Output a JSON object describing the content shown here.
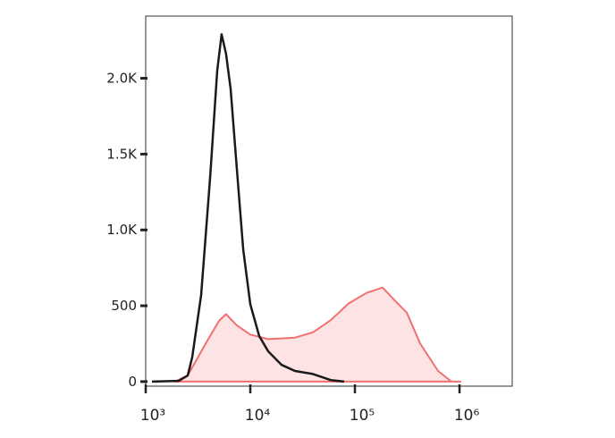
{
  "chart_data": {
    "type": "histogram-overlay",
    "xscale": "log",
    "xlim": [
      1000,
      3190000
    ],
    "xticks": [
      {
        "value": 1000,
        "label": "10³"
      },
      {
        "value": 10000,
        "label": "10⁴"
      },
      {
        "value": 100000,
        "label": "10⁵"
      },
      {
        "value": 1000000,
        "label": "10⁶"
      }
    ],
    "ylim": [
      -30,
      2410
    ],
    "yticks": [
      0,
      500,
      {
        "value": 1000,
        "label": "1.0K"
      },
      {
        "value": 1500,
        "label": "1.5K"
      },
      {
        "value": 2000,
        "label": "2.0K"
      }
    ],
    "series": [
      {
        "color": "#f07070",
        "fill": "#fde3e3",
        "x": [
          1880,
          2520,
          3740,
          5020,
          5870,
          7440,
          10000,
          14820,
          26740,
          39630,
          58750,
          87100,
          129000,
          184000,
          233000,
          313000,
          421000,
          624000,
          838000,
          1020000
        ],
        "values": [
          0,
          40,
          250,
          400,
          445,
          370,
          310,
          280,
          290,
          325,
          405,
          515,
          585,
          620,
          545,
          455,
          250,
          70,
          0,
          0
        ]
      },
      {
        "color": "#1a1a1a",
        "x": [
          1148,
          2070,
          2520,
          2780,
          3390,
          4120,
          4830,
          5320,
          5870,
          6480,
          7440,
          8550,
          10000,
          12170,
          14820,
          19910,
          26740,
          39630,
          58750,
          78870
        ],
        "values": [
          0,
          5,
          40,
          160,
          570,
          1340,
          2050,
          2290,
          2160,
          1930,
          1400,
          870,
          510,
          300,
          200,
          110,
          70,
          50,
          10,
          0
        ]
      }
    ]
  }
}
